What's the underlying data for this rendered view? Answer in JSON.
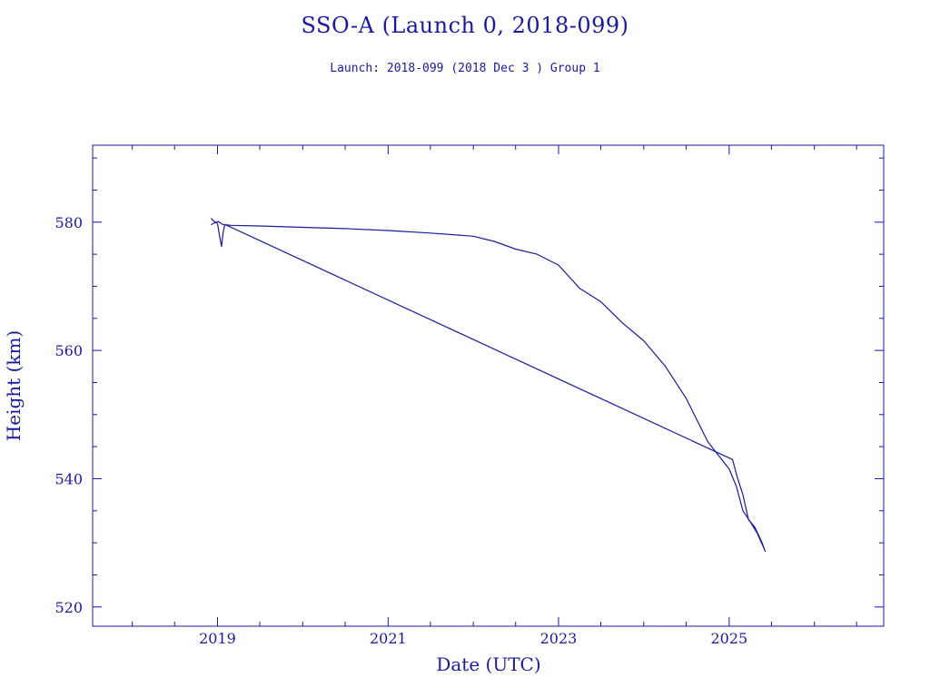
{
  "colors": {
    "ink": "#1a1a9c",
    "background": "#ffffff"
  },
  "chart_data": {
    "type": "line",
    "title": "SSO-A (Launch 0, 2018-099)",
    "subtitle": "Launch: 2018-099  (2018 Dec  3 )  Group 1",
    "xlabel": "Date (UTC)",
    "ylabel": "Height (km)",
    "x_ticks": [
      "2019",
      "2021",
      "2023",
      "2025"
    ],
    "y_ticks": [
      "520",
      "540",
      "560",
      "580"
    ],
    "xlim": [
      "2017-07-15",
      "2026-10-25"
    ],
    "ylim": [
      517,
      592
    ],
    "grid": false,
    "series": [
      {
        "x": [
          "2018-12-04",
          "2018-12-15",
          "2019-01-01",
          "2019-01-10",
          "2019-01-18",
          "2019-01-25",
          "2019-02-01",
          "2019-03-01",
          "2019-07-01",
          "2020-01-01",
          "2020-07-01",
          "2021-01-01",
          "2021-07-01",
          "2022-01-01",
          "2022-04-01",
          "2022-07-01",
          "2022-10-01",
          "2023-01-01",
          "2023-04-01",
          "2023-07-01",
          "2023-10-01",
          "2024-01-01",
          "2024-04-01",
          "2024-07-01",
          "2024-10-01",
          "2025-01-01",
          "2025-02-01",
          "2025-03-01",
          "2025-04-01",
          "2025-05-01",
          "2025-06-01"
        ],
        "y": [
          580.6,
          580.2,
          579.8,
          577.8,
          576.2,
          578.4,
          579.6,
          579.5,
          579.4,
          579.2,
          579.0,
          578.7,
          578.3,
          577.8,
          577.0,
          575.8,
          575.0,
          573.3,
          569.7,
          567.6,
          564.3,
          561.5,
          557.6,
          552.5,
          545.8,
          541.5,
          538.8,
          535.0,
          533.3,
          531.5,
          529.0
        ]
      },
      {
        "x": [
          "2018-12-04",
          "2018-12-20",
          "2019-01-05",
          "2019-01-20",
          "2019-02-10",
          "2025-01-15",
          "2025-02-05",
          "2025-03-01",
          "2025-03-25",
          "2025-04-20",
          "2025-05-20",
          "2025-06-05"
        ],
        "y": [
          579.6,
          579.9,
          580.1,
          579.7,
          579.5,
          543.0,
          540.2,
          537.5,
          533.6,
          532.5,
          530.2,
          528.6
        ]
      }
    ]
  }
}
